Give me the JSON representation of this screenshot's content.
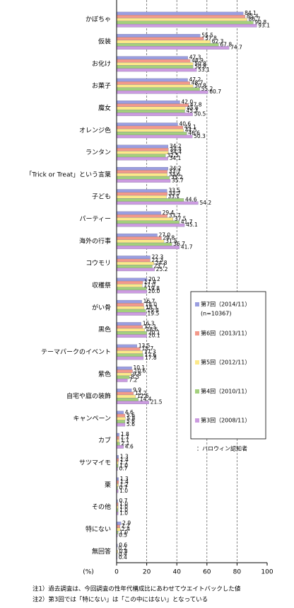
{
  "chart_data": {
    "type": "bar",
    "orientation": "horizontal",
    "x_unit_label": "(%)",
    "categories": [
      "かぼちゃ",
      "仮装",
      "お化け",
      "お菓子",
      "魔女",
      "オレンジ色",
      "ランタン",
      "「Trick or Treat」という言葉",
      "子ども",
      "パーティー",
      "海外の行事",
      "コウモリ",
      "収穫祭",
      "がい骨",
      "黒色",
      "テーマパークのイベント",
      "紫色",
      "自宅や庭の装飾",
      "キャンペーン",
      "カブ",
      "サツマイモ",
      "栗",
      "その他",
      "特にない",
      "無回答"
    ],
    "series": [
      {
        "name": "第7回（2014/11）",
        "note": "(n=10367)",
        "color": "#9a9ee0",
        "values": [
          84.1,
          55.5,
          47.3,
          47.2,
          42.0,
          40.6,
          34.2,
          34.2,
          33.5,
          29.4,
          27.0,
          22.3,
          20.2,
          16.7,
          16.3,
          13.5,
          10.1,
          9.9,
          4.6,
          1.8,
          1.3,
          1.3,
          0.7,
          2.9,
          0.6
        ],
        "value_labels": [
          "84.1",
          "55.5",
          "47.3",
          "47.2",
          "42.0",
          "40.6",
          "34.2",
          "34.2",
          "33.5",
          "29.4",
          "27.0",
          "22.3",
          "20.2",
          "16.7",
          "16.3",
          "13.5",
          "10.1",
          "9.9",
          "4.6",
          "1.8",
          "1.3",
          "1.3",
          "0.7",
          "2.9",
          "0.6"
        ]
      },
      {
        "name": "第6回（2013/11）",
        "color": "#f3998a",
        "values": [
          85.4,
          57.8,
          48.9,
          48.7,
          47.8,
          44.1,
          34.4,
          33.7,
          33.7,
          33.7,
          29.8,
          22.3,
          17.4,
          18.0,
          17.3,
          15.7,
          10.6,
          11.2,
          5.6,
          1.7,
          1.4,
          1.4,
          1.0,
          2.2,
          0.2
        ],
        "value_labels": [
          "85.4",
          "57.8",
          "48.9",
          "48.7",
          "47.8",
          "44.1",
          "34.4",
          "33.7",
          "33.7",
          "33.7",
          "29.8",
          "22.3",
          "17.4",
          "18.0",
          "17.3",
          "15.7",
          "10.6",
          "11.2",
          "5.6",
          "1.7",
          "1.4",
          "1.4",
          "1.0",
          "2.2",
          "0.2"
        ]
      },
      {
        "name": "第5回（2012/11）",
        "color": "#fde98a",
        "values": [
          86.7,
          62.3,
          50.8,
          50.8,
          45.6,
          44.5,
          34.4,
          33.6,
          33.1,
          37.5,
          31.5,
          24.8,
          17.0,
          18.3,
          18.6,
          17.3,
          9.8,
          12.6,
          5.8,
          1.7,
          1.1,
          1.2,
          1.0,
          2.4,
          0.8
        ],
        "value_labels": [
          "86.7",
          "62.3",
          "50.8",
          "50.8",
          "45.6",
          "44.5",
          "34.4",
          "33.6",
          "33.1",
          "37.5",
          "31.5",
          "24.8",
          "17.0",
          "18.3",
          "18.6",
          "17.3",
          "9.8",
          "12.6",
          "5.8",
          "1.7",
          "1.1",
          "1.2",
          "1.0",
          "2.4",
          "0.8"
        ]
      },
      {
        "name": "第4回（2010/11）",
        "color": "#a3d07c",
        "values": [
          90.8,
          67.8,
          50.8,
          55.2,
          45.3,
          46.6,
          32.5,
          35.2,
          44.6,
          41.7,
          36.7,
          23.7,
          19.8,
          19.4,
          20.1,
          17.6,
          8.5,
          14.4,
          5.6,
          2.1,
          1.0,
          0.7,
          1.0,
          1.0,
          0.4
        ],
        "value_labels": [
          "90.8",
          "67.8",
          "50.8",
          "55.2",
          "45.3",
          "46.6",
          "32.5",
          "35.2",
          "44.6",
          "41.7",
          "36.7",
          "23.7",
          "19.8",
          "19.4",
          "20.1",
          "17.6",
          "8.5",
          "14.4",
          "5.6",
          "2.1",
          "1.0",
          "0.7",
          "1.0",
          "1.0",
          "0.4"
        ]
      },
      {
        "name": "第3回（2008/11）",
        "color": "#cc9be0",
        "values": [
          93.1,
          74.7,
          53.1,
          60.7,
          50.5,
          50.3,
          34.1,
          35.7,
          54.2,
          45.1,
          41.7,
          25.2,
          20.0,
          19.5,
          20.1,
          17.8,
          7.2,
          21.5,
          5.6,
          4.6,
          0.7,
          1.0,
          1.0,
          0.5,
          0.4
        ],
        "value_labels": [
          "93.1",
          "74.7",
          "53.1",
          "60.7",
          "50.5",
          "50.3",
          "34.1",
          "35.7",
          "54.2",
          "45.1",
          "41.7",
          "25.2",
          "20.0",
          "19.5",
          "20.1",
          "17.8",
          "7.2",
          "21.5",
          "5.6",
          "4.6",
          "0.7",
          "1.0",
          "1.0",
          "0.5",
          "0.4"
        ]
      }
    ],
    "legend_title": "：ハロウィン認知者",
    "xlim": [
      0,
      100
    ],
    "xticks": [
      0,
      20,
      40,
      60,
      80,
      100
    ],
    "grid": true,
    "notes": [
      "注1）過去調査は、今回調査の性年代構成比にあわせてウエイトバックした値",
      "注2）第3回では「特にない」は「この中にはない」となっている"
    ]
  }
}
